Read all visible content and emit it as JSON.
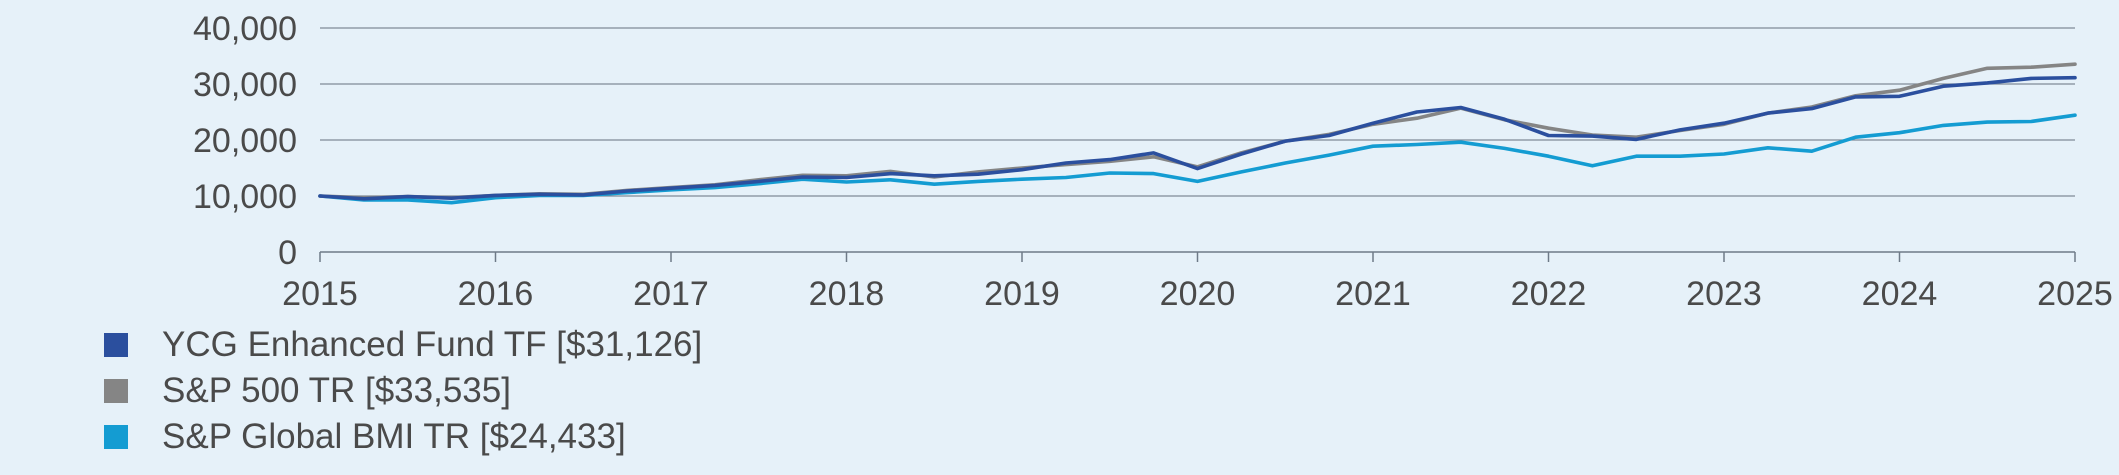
{
  "chart_data": {
    "type": "line",
    "title": "",
    "xlabel": "",
    "ylabel": "",
    "ylim": [
      0,
      40000
    ],
    "xlim": [
      "2015-01",
      "2025-01"
    ],
    "y_ticks": [
      0,
      10000,
      20000,
      30000,
      40000
    ],
    "y_tick_labels": [
      "0",
      "10,000",
      "20,000",
      "30,000",
      "40,000"
    ],
    "x_ticks": [
      "2015-01",
      "2016-01",
      "2017-01",
      "2018-01",
      "2019-01",
      "2020-01",
      "2021-01",
      "2022-01",
      "2023-01",
      "2024-01",
      "2025-01"
    ],
    "x_tick_labels": [
      "2015",
      "2016",
      "2017",
      "2018",
      "2019",
      "2020",
      "2021",
      "2022",
      "2023",
      "2024",
      "2025"
    ],
    "grid": "horizontal",
    "legend_position": "bottom-left",
    "x": [
      "2015-01",
      "2015-04",
      "2015-07",
      "2015-10",
      "2016-01",
      "2016-04",
      "2016-07",
      "2016-10",
      "2017-01",
      "2017-04",
      "2017-07",
      "2017-10",
      "2018-01",
      "2018-04",
      "2018-07",
      "2018-10",
      "2019-01",
      "2019-04",
      "2019-07",
      "2019-10",
      "2020-01",
      "2020-04",
      "2020-07",
      "2020-10",
      "2021-01",
      "2021-04",
      "2021-07",
      "2021-10",
      "2022-01",
      "2022-04",
      "2022-07",
      "2022-10",
      "2023-01",
      "2023-04",
      "2023-07",
      "2023-10",
      "2024-01",
      "2024-04",
      "2024-07",
      "2024-10",
      "2025-01"
    ],
    "series": [
      {
        "name": "YCG Enhanced Fund TF [$31,126]",
        "color": "#2b4f9e",
        "values": [
          10000,
          9500,
          9900,
          9600,
          10100,
          10300,
          10200,
          10900,
          11400,
          11900,
          12600,
          13400,
          13300,
          14000,
          13600,
          13900,
          14700,
          15900,
          16500,
          17700,
          14900,
          17500,
          19800,
          20800,
          23000,
          25000,
          25800,
          23700,
          20800,
          20700,
          20100,
          21800,
          23000,
          24800,
          25600,
          27700,
          27800,
          29600,
          30200,
          31000,
          31126
        ]
      },
      {
        "name": "S&P 500 TR [$33,535]",
        "color": "#858585",
        "values": [
          10000,
          9700,
          9900,
          9700,
          10100,
          10400,
          10300,
          11000,
          11500,
          12000,
          12900,
          13700,
          13600,
          14400,
          13400,
          14300,
          15000,
          15600,
          16200,
          17000,
          15200,
          17700,
          19800,
          21000,
          22800,
          23900,
          25700,
          23600,
          22100,
          20900,
          20500,
          21700,
          22800,
          24800,
          25900,
          27900,
          28900,
          31000,
          32800,
          33000,
          33535
        ]
      },
      {
        "name": "S&P Global BMI TR [$24,433]",
        "color": "#149cd2",
        "values": [
          10000,
          9300,
          9300,
          8800,
          9700,
          10100,
          10100,
          10600,
          11100,
          11500,
          12200,
          13000,
          12500,
          12900,
          12100,
          12600,
          13000,
          13300,
          14100,
          14000,
          12600,
          14300,
          15900,
          17300,
          18900,
          19200,
          19600,
          18500,
          17100,
          15400,
          17100,
          17100,
          17500,
          18600,
          18000,
          20500,
          21300,
          22600,
          23200,
          23300,
          24433
        ]
      }
    ]
  }
}
